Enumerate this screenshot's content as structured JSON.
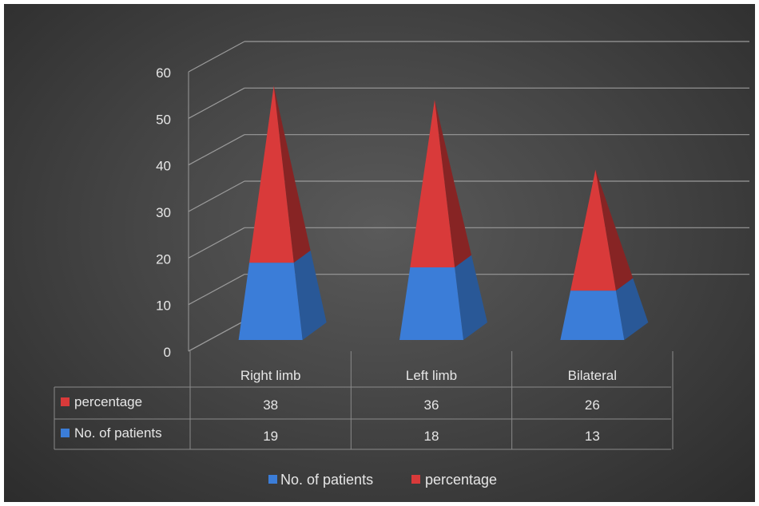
{
  "chart_data": {
    "type": "bar",
    "style": "3d stacked pyramid with data table",
    "categories": [
      "Right limb",
      "Left limb",
      "Bilateral"
    ],
    "series": [
      {
        "name": "No. of patients",
        "values": [
          19,
          18,
          13
        ],
        "color": "#3b7dd8"
      },
      {
        "name": "percentage",
        "values": [
          38,
          36,
          26
        ],
        "color": "#d93a3a"
      }
    ],
    "y_ticks": [
      "0",
      "10",
      "20",
      "30",
      "40",
      "50",
      "60"
    ],
    "ylim": [
      0,
      60
    ],
    "grid": true,
    "legend": "bottom",
    "background": "#3f3f3f"
  }
}
